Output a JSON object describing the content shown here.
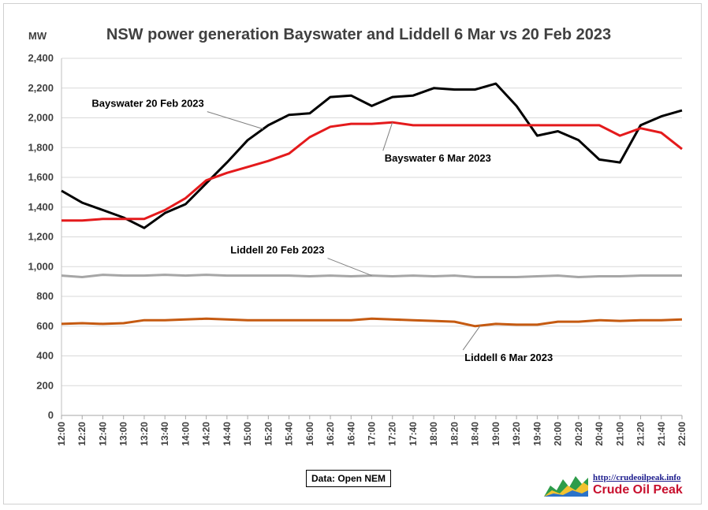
{
  "chart_data": {
    "type": "line",
    "title": "NSW power generation Bayswater and Liddell 6 Mar vs 20 Feb 2023",
    "ylabel": "MW",
    "ylim": [
      0,
      2400
    ],
    "yticks": [
      0,
      200,
      400,
      600,
      800,
      1000,
      1200,
      1400,
      1600,
      1800,
      2000,
      2200,
      2400
    ],
    "ytick_labels": [
      "0",
      "200",
      "400",
      "600",
      "800",
      "1,000",
      "1,200",
      "1,400",
      "1,600",
      "1,800",
      "2,000",
      "2,200",
      "2,400"
    ],
    "x_labels": [
      "12:00",
      "12:20",
      "12:40",
      "13:00",
      "13:20",
      "13:40",
      "14:00",
      "14:20",
      "14:40",
      "15:00",
      "15:20",
      "15:40",
      "16:00",
      "16:20",
      "16:40",
      "17:00",
      "17:20",
      "17:40",
      "18:00",
      "18:20",
      "18:40",
      "19:00",
      "19:20",
      "19:40",
      "20:00",
      "20:20",
      "20:40",
      "21:00",
      "21:20",
      "21:40",
      "22:00"
    ],
    "grid": "horizontal",
    "series": [
      {
        "name": "Bayswater 20 Feb 2023",
        "color": "#000000",
        "x": [
          "12:00",
          "12:20",
          "12:40",
          "13:00",
          "13:20",
          "13:40",
          "14:00",
          "14:20",
          "14:40",
          "15:00",
          "15:20",
          "15:40",
          "16:00",
          "16:20",
          "16:40",
          "17:00",
          "17:20",
          "17:40",
          "18:00",
          "18:20",
          "18:40",
          "19:00",
          "19:20",
          "19:40",
          "20:00",
          "20:20",
          "20:40",
          "21:00",
          "21:20",
          "21:40",
          "22:00"
        ],
        "values": [
          1510,
          1430,
          1380,
          1330,
          1260,
          1360,
          1420,
          1560,
          1700,
          1850,
          1950,
          2020,
          2030,
          2140,
          2150,
          2080,
          2140,
          2150,
          2200,
          2190,
          2190,
          2230,
          2080,
          1880,
          1910,
          1850,
          1720,
          1700,
          1950,
          2010,
          2050
        ]
      },
      {
        "name": "Bayswater 6 Mar 2023",
        "color": "#e41a1c",
        "x": [
          "12:00",
          "12:20",
          "12:40",
          "13:00",
          "13:20",
          "13:40",
          "14:00",
          "14:20",
          "14:40",
          "15:00",
          "15:20",
          "15:40",
          "16:00",
          "16:20",
          "16:40",
          "17:00",
          "17:20",
          "17:40",
          "18:00",
          "18:20",
          "18:40",
          "19:00",
          "19:20",
          "19:40",
          "20:00",
          "20:20",
          "20:40",
          "21:00",
          "21:20",
          "21:40",
          "22:00"
        ],
        "values": [
          1310,
          1310,
          1320,
          1320,
          1320,
          1380,
          1460,
          1580,
          1630,
          1670,
          1710,
          1760,
          1870,
          1940,
          1960,
          1960,
          1970,
          1950,
          1950,
          1950,
          1950,
          1950,
          1950,
          1950,
          1950,
          1950,
          1950,
          1880,
          1930,
          1900,
          1790
        ]
      },
      {
        "name": "Liddell 20 Feb 2023",
        "color": "#a6a6a6",
        "x": [
          "12:00",
          "12:20",
          "12:40",
          "13:00",
          "13:20",
          "13:40",
          "14:00",
          "14:20",
          "14:40",
          "15:00",
          "15:20",
          "15:40",
          "16:00",
          "16:20",
          "16:40",
          "17:00",
          "17:20",
          "17:40",
          "18:00",
          "18:20",
          "18:40",
          "19:00",
          "19:20",
          "19:40",
          "20:00",
          "20:20",
          "20:40",
          "21:00",
          "21:20",
          "21:40",
          "22:00"
        ],
        "values": [
          940,
          930,
          945,
          940,
          940,
          945,
          940,
          945,
          940,
          940,
          940,
          940,
          935,
          940,
          935,
          940,
          935,
          940,
          935,
          940,
          930,
          930,
          930,
          935,
          940,
          930,
          935,
          935,
          940,
          940,
          940
        ]
      },
      {
        "name": "Liddell 6 Mar 2023",
        "color": "#c55a11",
        "x": [
          "12:00",
          "12:20",
          "12:40",
          "13:00",
          "13:20",
          "13:40",
          "14:00",
          "14:20",
          "14:40",
          "15:00",
          "15:20",
          "15:40",
          "16:00",
          "16:20",
          "16:40",
          "17:00",
          "17:20",
          "17:40",
          "18:00",
          "18:20",
          "18:40",
          "19:00",
          "19:20",
          "19:40",
          "20:00",
          "20:20",
          "20:40",
          "21:00",
          "21:20",
          "21:40",
          "22:00"
        ],
        "values": [
          615,
          620,
          615,
          620,
          640,
          640,
          645,
          650,
          645,
          640,
          640,
          640,
          640,
          640,
          640,
          650,
          645,
          640,
          635,
          630,
          600,
          615,
          610,
          610,
          630,
          630,
          640,
          635,
          640,
          640,
          645
        ]
      }
    ],
    "annotations": [
      {
        "text": "Bayswater 20 Feb 2023",
        "series": 0,
        "at": "15:15"
      },
      {
        "text": "Bayswater 6 Mar 2023",
        "series": 1,
        "at": "17:20"
      },
      {
        "text": "Liddell 20 Feb 2023",
        "series": 2,
        "at": "17:00"
      },
      {
        "text": "Liddell 6 Mar 2023",
        "series": 3,
        "at": "18:45"
      }
    ]
  },
  "footer": {
    "source": "Data: Open NEM",
    "logo_url": "http://crudeoilpeak.info",
    "logo_name": "Crude Oil Peak"
  }
}
